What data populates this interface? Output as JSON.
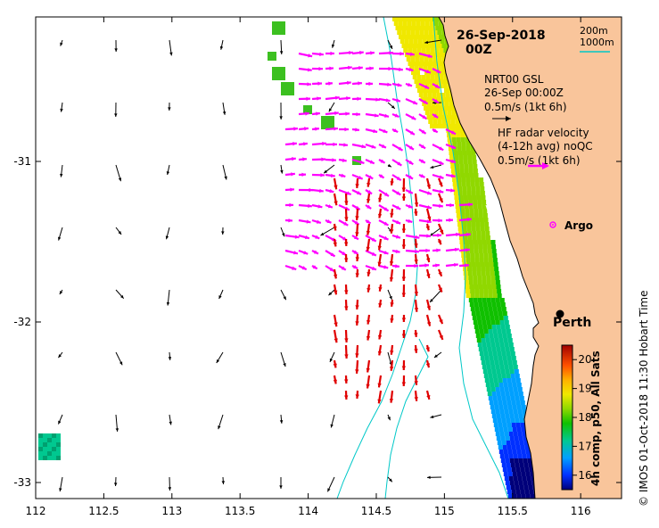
{
  "map": {
    "date_title": "26-Sep-2018",
    "time_title": "00Z",
    "legend_scale": {
      "depth_200": "200m",
      "depth_1000": "1000m",
      "depth_200_color": "#000000",
      "depth_1000_color": "#00c8c8"
    },
    "model_arrow_legend": {
      "line1": "NRT00 GSL",
      "line2": "26-Sep 00:00Z",
      "line3": "0.5m/s (1kt 6h)"
    },
    "radar_arrow_legend": {
      "line1": "HF radar velocity",
      "line2": "(4-12h avg) noQC",
      "line3": "0.5m/s (1kt 6h)"
    },
    "argo_label": "Argo",
    "city_label": "Perth",
    "x_axis": {
      "lon_min": 112,
      "lon_max": 116.3,
      "ticks": [
        "112",
        "112.5",
        "113",
        "113.5",
        "114",
        "114.5",
        "115",
        "115.5",
        "116"
      ]
    },
    "y_axis": {
      "lat_min": -33.1,
      "lat_max": -30.1,
      "ticks": [
        "-31",
        "-32",
        "-33"
      ]
    },
    "colorbar": {
      "label": "4h comp, p50, All Sats",
      "min": 15.5,
      "max": 20.5,
      "ticks": [
        "16",
        "17",
        "18",
        "19",
        "20"
      ]
    },
    "credit": "© IMOS 01-Oct-2018 11:30 Hobart Time",
    "colors": {
      "land": "#f9c59b",
      "model_arrow": "#000000",
      "radar_magenta": "#ff00ff",
      "radar_red": "#e00000",
      "isobath_1000": "#00c8c8",
      "isobath_200": "#000000"
    }
  }
}
